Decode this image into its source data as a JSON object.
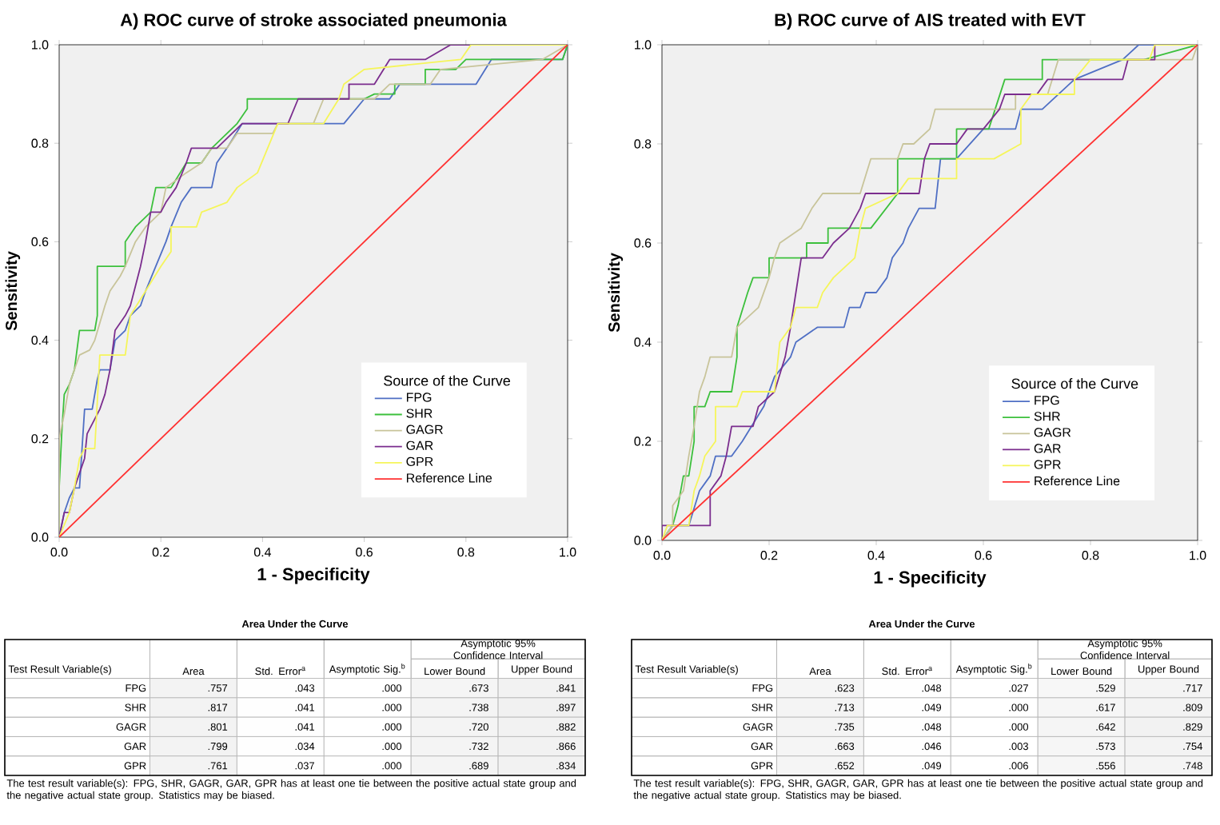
{
  "chart_data": [
    {
      "type": "line",
      "title": "A) ROC curve of stroke associated pneumonia",
      "xlabel": "1 - Specificity",
      "ylabel": "Sensitivity",
      "legend_title": "Source of the Curve",
      "legend": "bottom right",
      "xlim": [
        0,
        1
      ],
      "ylim": [
        0,
        1
      ],
      "xticks": [
        {
          "value": 0,
          "label": "0.0"
        },
        {
          "value": 0.2,
          "label": "0.2"
        },
        {
          "value": 0.4,
          "label": "0.4"
        },
        {
          "value": 0.6,
          "label": "0.6"
        },
        {
          "value": 0.8,
          "label": "0.8"
        },
        {
          "value": 1,
          "label": "1.0"
        }
      ],
      "yticks": [
        {
          "value": 0,
          "label": "0.0"
        },
        {
          "value": 0.2,
          "label": "0.2"
        },
        {
          "value": 0.4,
          "label": "0.4"
        },
        {
          "value": 0.6,
          "label": "0.6"
        },
        {
          "value": 0.8,
          "label": "0.8"
        },
        {
          "value": 1,
          "label": "1.0"
        }
      ],
      "series": [
        {
          "name": "FPG",
          "color": "#4f6fc4",
          "x": [
            0,
            0.01,
            0.02,
            0.03,
            0.04,
            0.05,
            0.065,
            0.075,
            0.08,
            0.1,
            0.11,
            0.13,
            0.14,
            0.16,
            0.17,
            0.19,
            0.21,
            0.22,
            0.24,
            0.26,
            0.3,
            0.31,
            0.33,
            0.36,
            0.56,
            0.6,
            0.65,
            0.67,
            0.82,
            0.85,
            0.99,
            1
          ],
          "values": [
            0,
            0.05,
            0.08,
            0.1,
            0.1,
            0.26,
            0.26,
            0.32,
            0.34,
            0.34,
            0.4,
            0.42,
            0.45,
            0.47,
            0.5,
            0.55,
            0.6,
            0.63,
            0.68,
            0.71,
            0.71,
            0.76,
            0.79,
            0.84,
            0.84,
            0.89,
            0.89,
            0.92,
            0.92,
            0.97,
            0.97,
            1
          ]
        },
        {
          "name": "SHR",
          "color": "#3cc03c",
          "x": [
            0,
            0,
            0.005,
            0.01,
            0.02,
            0.03,
            0.04,
            0.07,
            0.075,
            0.075,
            0.13,
            0.13,
            0.15,
            0.18,
            0.19,
            0.22,
            0.25,
            0.28,
            0.3,
            0.35,
            0.37,
            0.37,
            0.6,
            0.62,
            0.66,
            0.66,
            0.72,
            0.72,
            0.78,
            0.8,
            0.99,
            1
          ],
          "values": [
            0,
            0.1,
            0.21,
            0.29,
            0.31,
            0.34,
            0.42,
            0.42,
            0.45,
            0.55,
            0.55,
            0.6,
            0.63,
            0.66,
            0.71,
            0.71,
            0.76,
            0.76,
            0.79,
            0.84,
            0.87,
            0.89,
            0.89,
            0.9,
            0.9,
            0.92,
            0.92,
            0.95,
            0.95,
            0.97,
            0.97,
            1
          ]
        },
        {
          "name": "GAGR",
          "color": "#c8c49a",
          "x": [
            0,
            0,
            0.01,
            0.02,
            0.03,
            0.04,
            0.06,
            0.07,
            0.09,
            0.1,
            0.12,
            0.13,
            0.15,
            0.17,
            0.2,
            0.21,
            0.25,
            0.28,
            0.3,
            0.33,
            0.35,
            0.42,
            0.43,
            0.5,
            0.52,
            0.62,
            0.65,
            0.73,
            0.75,
            0.95,
            1
          ],
          "values": [
            0,
            0.2,
            0.25,
            0.31,
            0.34,
            0.37,
            0.38,
            0.4,
            0.47,
            0.5,
            0.53,
            0.55,
            0.6,
            0.63,
            0.66,
            0.71,
            0.74,
            0.76,
            0.79,
            0.79,
            0.82,
            0.82,
            0.84,
            0.84,
            0.89,
            0.89,
            0.92,
            0.92,
            0.95,
            0.97,
            1
          ]
        },
        {
          "name": "GAR",
          "color": "#7b2d8e",
          "x": [
            0,
            0.01,
            0.02,
            0.03,
            0.04,
            0.05,
            0.055,
            0.07,
            0.08,
            0.09,
            0.1,
            0.11,
            0.13,
            0.14,
            0.16,
            0.17,
            0.18,
            0.2,
            0.21,
            0.23,
            0.25,
            0.26,
            0.31,
            0.34,
            0.36,
            0.45,
            0.47,
            0.57,
            0.57,
            0.62,
            0.65,
            0.72,
            0.77,
            1
          ],
          "values": [
            0,
            0.05,
            0.05,
            0.1,
            0.13,
            0.16,
            0.21,
            0.24,
            0.26,
            0.29,
            0.34,
            0.42,
            0.45,
            0.47,
            0.55,
            0.6,
            0.66,
            0.66,
            0.68,
            0.71,
            0.76,
            0.79,
            0.79,
            0.82,
            0.84,
            0.84,
            0.89,
            0.89,
            0.92,
            0.92,
            0.97,
            0.97,
            1,
            1
          ]
        },
        {
          "name": "GPR",
          "color": "#f5f55a",
          "x": [
            0,
            0.02,
            0.03,
            0.04,
            0.05,
            0.07,
            0.08,
            0.13,
            0.14,
            0.17,
            0.2,
            0.22,
            0.22,
            0.27,
            0.28,
            0.33,
            0.35,
            0.39,
            0.41,
            0.43,
            0.52,
            0.55,
            0.56,
            0.6,
            0.79,
            0.81,
            1
          ],
          "values": [
            0,
            0.05,
            0.1,
            0.16,
            0.18,
            0.18,
            0.37,
            0.37,
            0.45,
            0.5,
            0.55,
            0.58,
            0.63,
            0.63,
            0.66,
            0.68,
            0.71,
            0.74,
            0.79,
            0.84,
            0.84,
            0.89,
            0.92,
            0.95,
            0.97,
            1,
            1
          ]
        },
        {
          "name": "Reference Line",
          "color": "#ff3030",
          "x": [
            0,
            1
          ],
          "values": [
            0,
            1
          ]
        }
      ]
    },
    {
      "type": "line",
      "title": "B) ROC curve of AIS treated with EVT",
      "xlabel": "1 - Specificity",
      "ylabel": "Sensitivity",
      "legend_title": "Source of the Curve",
      "legend": "bottom right",
      "xlim": [
        0,
        1
      ],
      "ylim": [
        0,
        1
      ],
      "xticks": [
        {
          "value": 0,
          "label": "0.0"
        },
        {
          "value": 0.2,
          "label": "0.2"
        },
        {
          "value": 0.4,
          "label": "0.4"
        },
        {
          "value": 0.6,
          "label": "0.6"
        },
        {
          "value": 0.8,
          "label": "0.8"
        },
        {
          "value": 1,
          "label": "1.0"
        }
      ],
      "yticks": [
        {
          "value": 0,
          "label": "0.0"
        },
        {
          "value": 0.2,
          "label": "0.2"
        },
        {
          "value": 0.4,
          "label": "0.4"
        },
        {
          "value": 0.6,
          "label": "0.6"
        },
        {
          "value": 0.8,
          "label": "0.8"
        },
        {
          "value": 1,
          "label": "1.0"
        }
      ],
      "series": [
        {
          "name": "FPG",
          "color": "#4f6fc4",
          "x": [
            0,
            0.02,
            0.05,
            0.07,
            0.09,
            0.1,
            0.13,
            0.15,
            0.19,
            0.21,
            0.24,
            0.25,
            0.29,
            0.34,
            0.35,
            0.37,
            0.38,
            0.4,
            0.42,
            0.43,
            0.45,
            0.46,
            0.48,
            0.51,
            0.52,
            0.55,
            0.6,
            0.66,
            0.67,
            0.71,
            0.77,
            0.86,
            0.89,
            1
          ],
          "values": [
            0,
            0.03,
            0.03,
            0.1,
            0.13,
            0.17,
            0.17,
            0.2,
            0.27,
            0.33,
            0.37,
            0.4,
            0.43,
            0.43,
            0.47,
            0.47,
            0.5,
            0.5,
            0.53,
            0.57,
            0.6,
            0.63,
            0.67,
            0.67,
            0.77,
            0.77,
            0.83,
            0.83,
            0.87,
            0.87,
            0.93,
            0.97,
            1,
            1
          ]
        },
        {
          "name": "SHR",
          "color": "#3cc03c",
          "x": [
            0,
            0.02,
            0.03,
            0.04,
            0.05,
            0.06,
            0.06,
            0.08,
            0.09,
            0.13,
            0.14,
            0.14,
            0.16,
            0.17,
            0.2,
            0.2,
            0.27,
            0.27,
            0.31,
            0.31,
            0.39,
            0.44,
            0.44,
            0.55,
            0.55,
            0.61,
            0.64,
            0.71,
            0.71,
            0.9,
            1
          ],
          "values": [
            0,
            0.03,
            0.07,
            0.13,
            0.13,
            0.2,
            0.27,
            0.27,
            0.3,
            0.3,
            0.37,
            0.43,
            0.5,
            0.53,
            0.53,
            0.57,
            0.57,
            0.6,
            0.6,
            0.63,
            0.63,
            0.7,
            0.77,
            0.77,
            0.83,
            0.83,
            0.93,
            0.93,
            0.97,
            0.97,
            1
          ]
        },
        {
          "name": "GAGR",
          "color": "#c8c49a",
          "x": [
            0,
            0.02,
            0.02,
            0.04,
            0.05,
            0.06,
            0.07,
            0.08,
            0.09,
            0.13,
            0.14,
            0.18,
            0.2,
            0.21,
            0.22,
            0.26,
            0.28,
            0.3,
            0.37,
            0.39,
            0.44,
            0.45,
            0.47,
            0.5,
            0.51,
            0.66,
            0.66,
            0.72,
            0.74,
            0.99,
            1
          ],
          "values": [
            0,
            0.03,
            0.07,
            0.1,
            0.17,
            0.23,
            0.3,
            0.33,
            0.37,
            0.37,
            0.43,
            0.47,
            0.53,
            0.57,
            0.6,
            0.63,
            0.67,
            0.7,
            0.7,
            0.77,
            0.77,
            0.8,
            0.8,
            0.83,
            0.87,
            0.87,
            0.9,
            0.9,
            0.97,
            0.97,
            1
          ]
        },
        {
          "name": "GAR",
          "color": "#7b2d8e",
          "x": [
            0,
            0,
            0.09,
            0.09,
            0.11,
            0.12,
            0.13,
            0.17,
            0.18,
            0.21,
            0.23,
            0.24,
            0.25,
            0.26,
            0.3,
            0.32,
            0.35,
            0.37,
            0.38,
            0.48,
            0.49,
            0.5,
            0.55,
            0.57,
            0.6,
            0.63,
            0.64,
            0.7,
            0.72,
            0.86,
            0.87,
            0.92,
            0.92,
            1
          ],
          "values": [
            0,
            0.03,
            0.03,
            0.1,
            0.13,
            0.17,
            0.23,
            0.23,
            0.27,
            0.3,
            0.37,
            0.43,
            0.5,
            0.57,
            0.57,
            0.6,
            0.63,
            0.67,
            0.7,
            0.7,
            0.77,
            0.8,
            0.8,
            0.83,
            0.83,
            0.87,
            0.9,
            0.9,
            0.93,
            0.93,
            0.97,
            0.97,
            1,
            1
          ]
        },
        {
          "name": "GPR",
          "color": "#f5f55a",
          "x": [
            0,
            0.01,
            0.05,
            0.06,
            0.07,
            0.08,
            0.1,
            0.1,
            0.14,
            0.15,
            0.21,
            0.22,
            0.24,
            0.25,
            0.29,
            0.3,
            0.32,
            0.36,
            0.37,
            0.38,
            0.44,
            0.46,
            0.55,
            0.55,
            0.62,
            0.67,
            0.67,
            0.69,
            0.77,
            0.77,
            0.8,
            0.91,
            0.92,
            1
          ],
          "values": [
            0,
            0.03,
            0.03,
            0.1,
            0.13,
            0.17,
            0.2,
            0.27,
            0.27,
            0.3,
            0.3,
            0.4,
            0.43,
            0.47,
            0.47,
            0.5,
            0.53,
            0.57,
            0.63,
            0.67,
            0.7,
            0.73,
            0.73,
            0.77,
            0.77,
            0.8,
            0.87,
            0.9,
            0.9,
            0.93,
            0.97,
            0.97,
            1,
            1
          ]
        },
        {
          "name": "Reference Line",
          "color": "#ff3030",
          "x": [
            0,
            1
          ],
          "values": [
            0,
            1
          ]
        }
      ]
    },
    {
      "type": "heatmap",
      "title": "Area Under the Curve",
      "ylabel": "Test Result Variable(s)",
      "categories": [
        "Area",
        "Std. Error$^{a}$",
        "Asymptotic Sig.$^{b}$",
        "Lower Bound",
        "Upper Bound"
      ],
      "y_categories": [
        "FPG",
        "SHR",
        "GAGR",
        "GAR",
        "GPR"
      ],
      "cells": [
        [
          0.757,
          0.043,
          0.0,
          0.673,
          0.841
        ],
        [
          0.817,
          0.041,
          0.0,
          0.738,
          0.897
        ],
        [
          0.801,
          0.041,
          0.0,
          0.72,
          0.882
        ],
        [
          0.799,
          0.034,
          0.0,
          0.732,
          0.866
        ],
        [
          0.761,
          0.037,
          0.0,
          0.689,
          0.834
        ]
      ],
      "cell_labels": [
        [
          ".757",
          ".043",
          ".000",
          ".673",
          ".841"
        ],
        [
          ".817",
          ".041",
          ".000",
          ".738",
          ".897"
        ],
        [
          ".801",
          ".041",
          ".000",
          ".720",
          ".882"
        ],
        [
          ".799",
          ".034",
          ".000",
          ".732",
          ".866"
        ],
        [
          ".761",
          ".037",
          ".000",
          ".689",
          ".834"
        ]
      ],
      "annotations": [
        "Asymptotic 95% Confidence Interval",
        "The test result variable(s): FPG, SHR, GAGR, GAR, GPR has at least one tie between the positive actual state group and the negative actual state group. Statistics may be biased."
      ]
    },
    {
      "type": "heatmap",
      "title": "Area Under the Curve",
      "ylabel": "Test Result Variable(s)",
      "categories": [
        "Area",
        "Std. Error$^{a}$",
        "Asymptotic Sig.$^{b}$",
        "Lower Bound",
        "Upper Bound"
      ],
      "y_categories": [
        "FPG",
        "SHR",
        "GAGR",
        "GAR",
        "GPR"
      ],
      "cells": [
        [
          0.623,
          0.048,
          0.027,
          0.529,
          0.717
        ],
        [
          0.713,
          0.049,
          0.0,
          0.617,
          0.809
        ],
        [
          0.735,
          0.048,
          0.0,
          0.642,
          0.829
        ],
        [
          0.663,
          0.046,
          0.003,
          0.573,
          0.754
        ],
        [
          0.652,
          0.049,
          0.006,
          0.556,
          0.748
        ]
      ],
      "cell_labels": [
        [
          ".623",
          ".048",
          ".027",
          ".529",
          ".717"
        ],
        [
          ".713",
          ".049",
          ".000",
          ".617",
          ".809"
        ],
        [
          ".735",
          ".048",
          ".000",
          ".642",
          ".829"
        ],
        [
          ".663",
          ".046",
          ".003",
          ".573",
          ".754"
        ],
        [
          ".652",
          ".049",
          ".006",
          ".556",
          ".748"
        ]
      ],
      "annotations": [
        "Asymptotic 95% Confidence Interval",
        "The test result variable(s): FPG, SHR, GAGR, GAR, GPR has at least one tie between the positive actual state group and the negative actual state group. Statistics may be biased."
      ]
    }
  ]
}
